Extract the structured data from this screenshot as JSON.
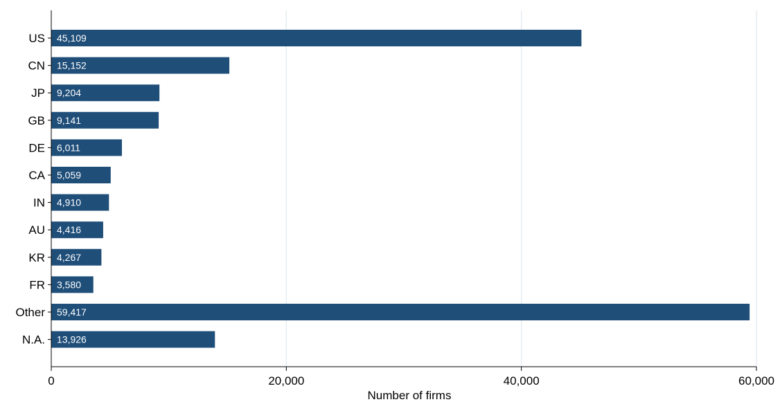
{
  "chart_data": {
    "type": "bar",
    "orientation": "horizontal",
    "categories": [
      "US",
      "CN",
      "JP",
      "GB",
      "DE",
      "CA",
      "IN",
      "AU",
      "KR",
      "FR",
      "Other",
      "N.A."
    ],
    "values": [
      45109,
      15152,
      9204,
      9141,
      6011,
      5059,
      4910,
      4416,
      4267,
      3580,
      59417,
      13926
    ],
    "value_labels": [
      "45,109",
      "15,152",
      "9,204",
      "9,141",
      "6,011",
      "5,059",
      "4,910",
      "4,416",
      "4,267",
      "3,580",
      "59,417",
      "13,926"
    ],
    "xlabel": "Number of firms",
    "ylabel": "",
    "xlim": [
      0,
      60000
    ],
    "x_ticks": [
      0,
      20000,
      40000,
      60000
    ],
    "x_tick_labels": [
      "0",
      "20,000",
      "40,000",
      "60,000"
    ],
    "grid": "vertical",
    "legend": "none",
    "colors": {
      "bar": "#1f4e79",
      "grid": "#e6ebf0",
      "axis": "#000000"
    }
  }
}
